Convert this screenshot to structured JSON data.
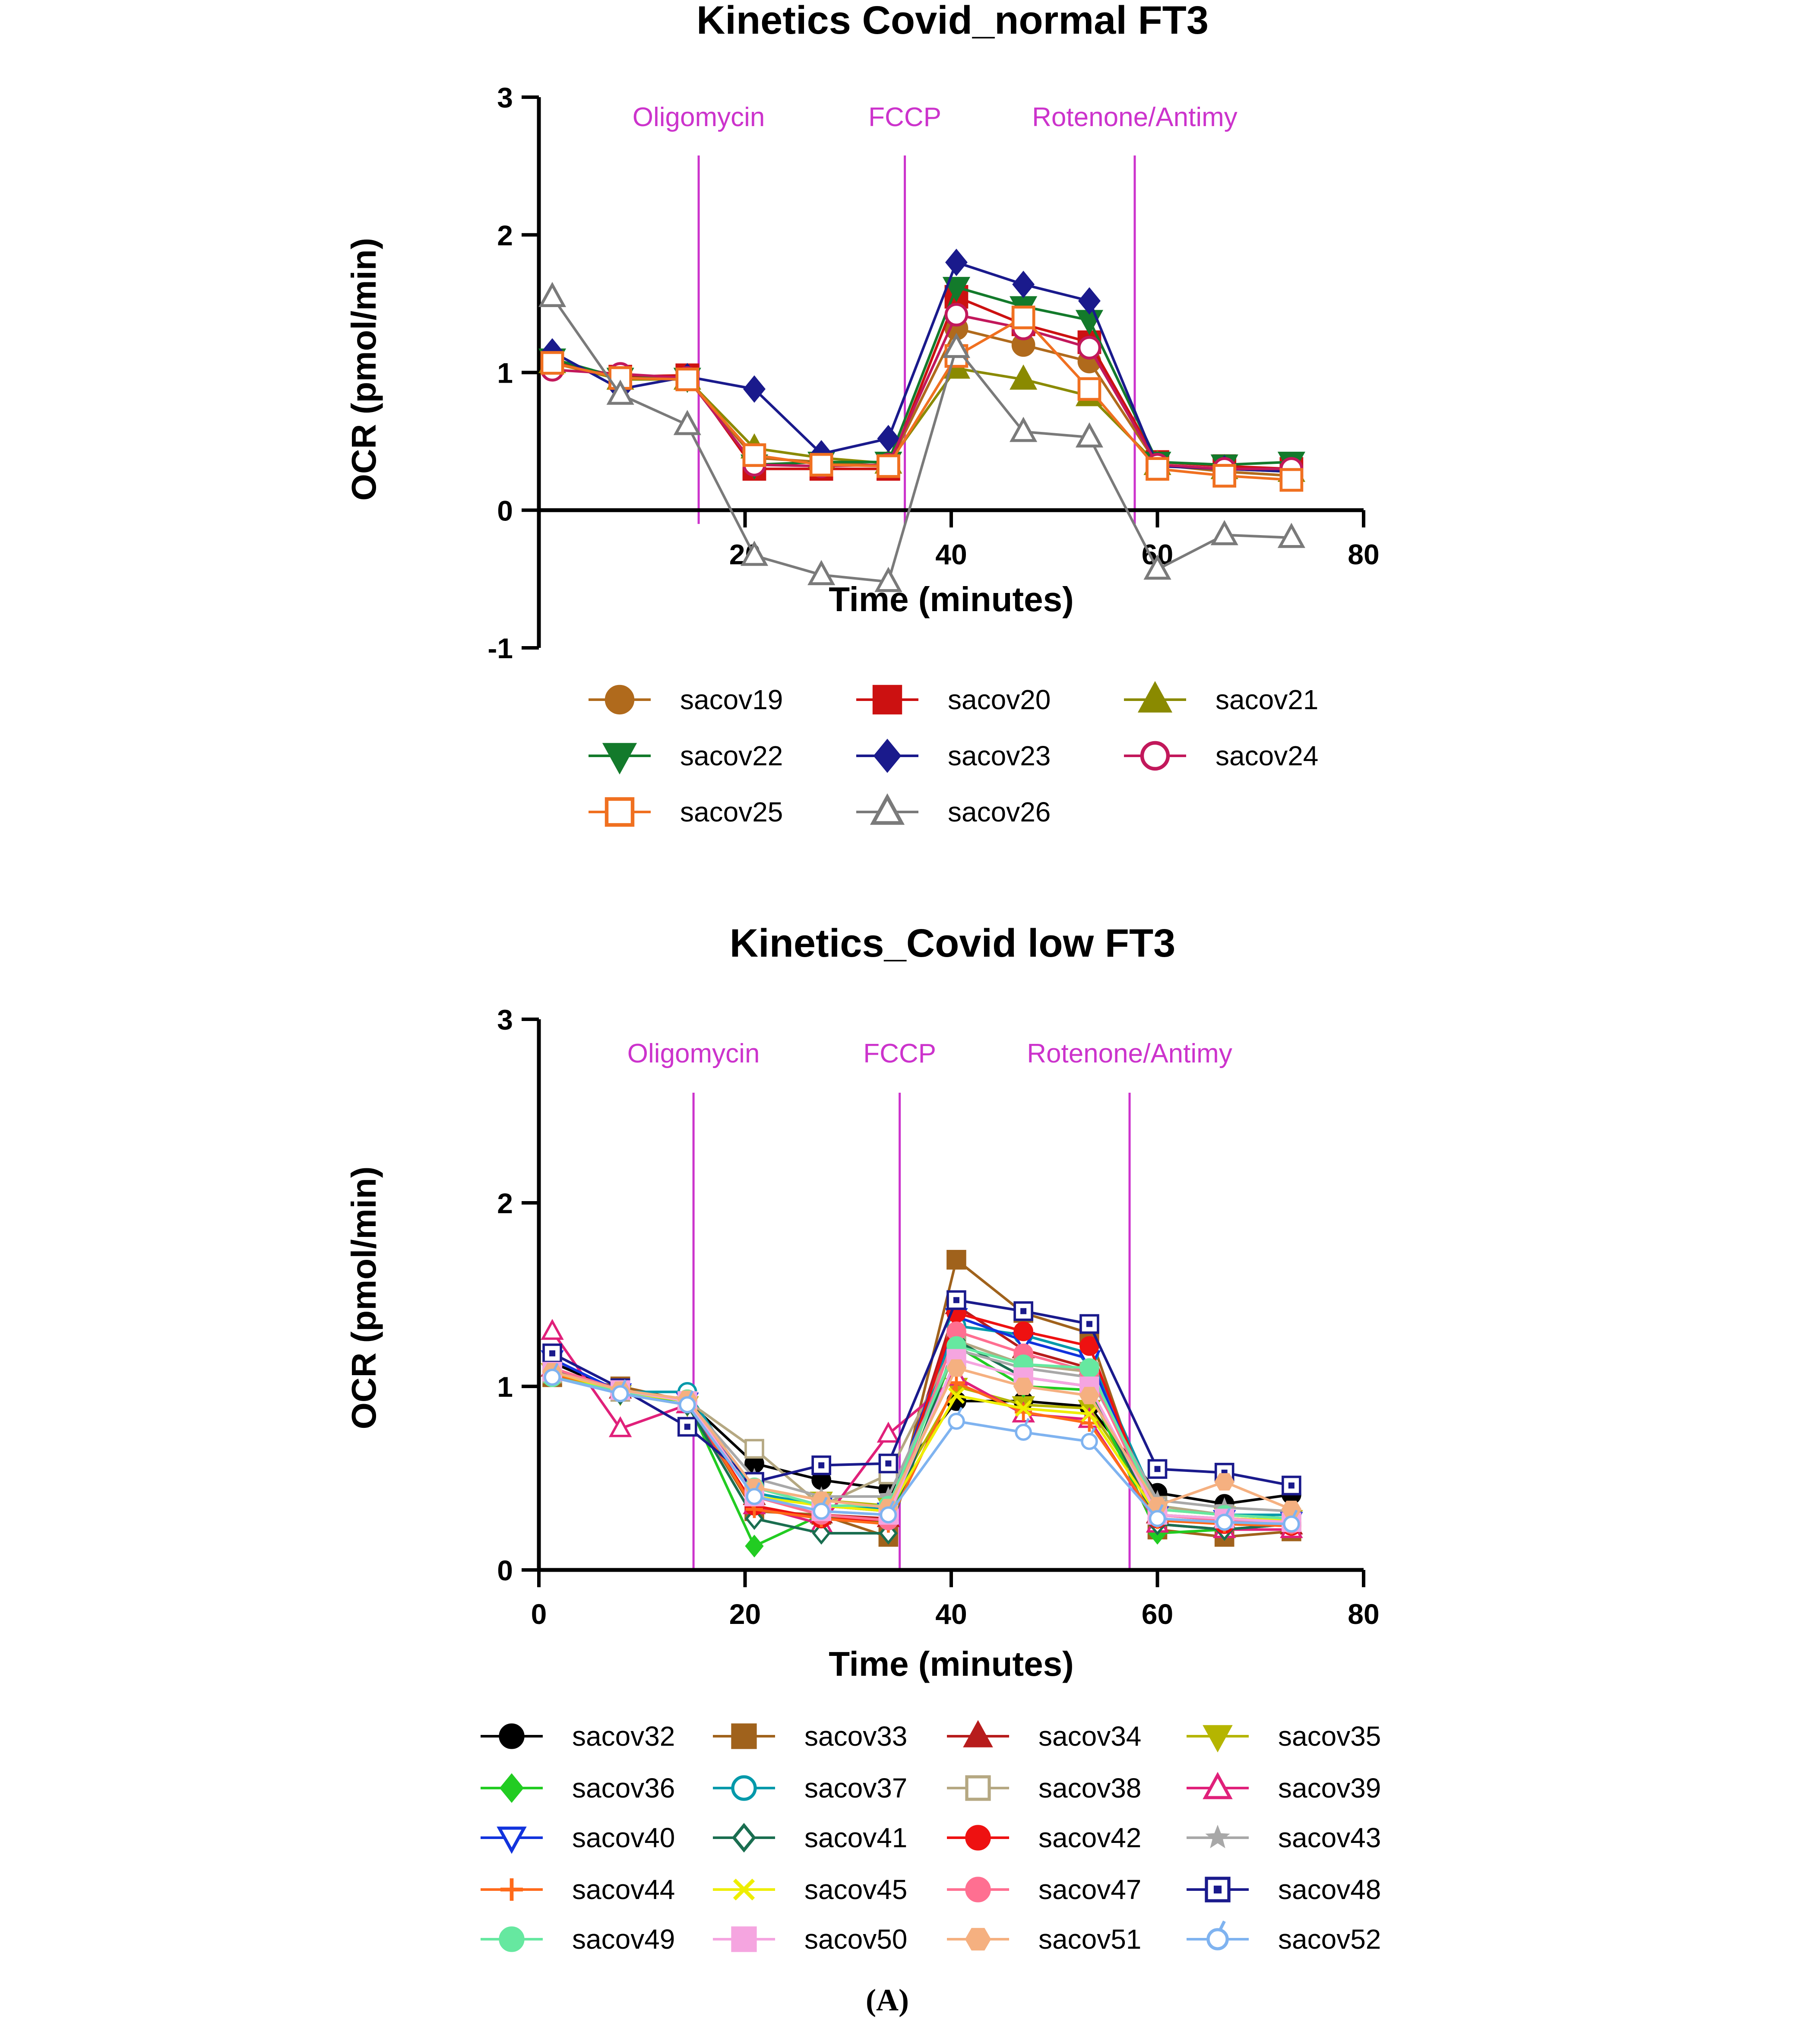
{
  "figure_caption": "(A)",
  "chart_data": [
    {
      "type": "line",
      "title": "Kinetics Covid_normal FT3",
      "xlabel": "Time (minutes)",
      "ylabel": "OCR (pmol/min)",
      "xlim": [
        0,
        80
      ],
      "ylim": [
        -1,
        3
      ],
      "xticks": [
        "20",
        "40",
        "60",
        "80"
      ],
      "yticks": [
        "-1",
        "0",
        "1",
        "2",
        "3"
      ],
      "injections": [
        {
          "label": "Oligomycin",
          "x": 15.5
        },
        {
          "label": "FCCP",
          "x": 35.5
        },
        {
          "label": "Rotenone/Antimy",
          "x": 57.8
        }
      ],
      "x": [
        1.3,
        7.9,
        14.4,
        20.9,
        27.4,
        33.9,
        40.5,
        47.0,
        53.4,
        60.0,
        66.5,
        73.0
      ],
      "series": [
        {
          "name": "sacov19",
          "color": "#b06a1c",
          "marker": "circle",
          "filled": true,
          "values": [
            1.1,
            0.95,
            0.95,
            0.38,
            0.35,
            0.32,
            1.32,
            1.2,
            1.08,
            0.33,
            0.28,
            0.25
          ]
        },
        {
          "name": "sacov20",
          "color": "#cc1111",
          "marker": "square",
          "filled": true,
          "values": [
            1.08,
            0.97,
            0.98,
            0.3,
            0.3,
            0.3,
            1.55,
            1.35,
            1.22,
            0.35,
            0.32,
            0.3
          ]
        },
        {
          "name": "sacov21",
          "color": "#8a8a00",
          "marker": "triangle-up",
          "filled": true,
          "values": [
            1.07,
            0.95,
            0.95,
            0.45,
            0.38,
            0.34,
            1.03,
            0.95,
            0.83,
            0.33,
            0.3,
            0.28
          ]
        },
        {
          "name": "sacov22",
          "color": "#137a2b",
          "marker": "triangle-down",
          "filled": true,
          "values": [
            1.1,
            0.96,
            0.96,
            0.33,
            0.35,
            0.35,
            1.62,
            1.48,
            1.38,
            0.35,
            0.33,
            0.35
          ]
        },
        {
          "name": "sacov23",
          "color": "#1a1a8c",
          "marker": "diamond",
          "filled": true,
          "values": [
            1.15,
            0.88,
            0.97,
            0.88,
            0.41,
            0.52,
            1.8,
            1.64,
            1.52,
            0.32,
            0.3,
            0.28
          ]
        },
        {
          "name": "sacov24",
          "color": "#c2185b",
          "marker": "circle",
          "filled": false,
          "values": [
            1.02,
            0.99,
            0.96,
            0.33,
            0.32,
            0.33,
            1.42,
            1.32,
            1.18,
            0.33,
            0.3,
            0.3
          ]
        },
        {
          "name": "sacov25",
          "color": "#f07020",
          "marker": "square",
          "filled": false,
          "values": [
            1.07,
            0.96,
            0.95,
            0.4,
            0.33,
            0.32,
            1.12,
            1.4,
            0.88,
            0.3,
            0.25,
            0.22
          ]
        },
        {
          "name": "sacov26",
          "color": "#7a7a7a",
          "marker": "triangle-up",
          "filled": false,
          "values": [
            1.55,
            0.84,
            0.62,
            -0.33,
            -0.47,
            -0.52,
            1.18,
            0.57,
            0.53,
            -0.43,
            -0.18,
            -0.2
          ]
        }
      ]
    },
    {
      "type": "line",
      "title": "Kinetics_Covid low FT3",
      "xlabel": "Time (minutes)",
      "ylabel": "OCR (pmol/min)",
      "xlim": [
        0,
        80
      ],
      "ylim": [
        0,
        3
      ],
      "xticks": [
        "0",
        "20",
        "40",
        "60",
        "80"
      ],
      "yticks": [
        "0",
        "1",
        "2",
        "3"
      ],
      "injections": [
        {
          "label": "Oligomycin",
          "x": 15.0
        },
        {
          "label": "FCCP",
          "x": 35.0
        },
        {
          "label": "Rotenone/Antimy",
          "x": 57.3
        }
      ],
      "x": [
        1.3,
        7.9,
        14.4,
        20.9,
        27.4,
        33.9,
        40.5,
        47.0,
        53.4,
        60.0,
        66.5,
        73.0
      ],
      "series": [
        {
          "name": "sacov32",
          "color": "#000000",
          "marker": "circle",
          "filled": true,
          "values": [
            1.13,
            0.97,
            0.92,
            0.58,
            0.49,
            0.44,
            0.92,
            0.92,
            0.89,
            0.42,
            0.36,
            0.41
          ]
        },
        {
          "name": "sacov33",
          "color": "#a0621c",
          "marker": "square",
          "filled": true,
          "values": [
            1.05,
            1.0,
            0.92,
            0.32,
            0.3,
            0.18,
            1.69,
            1.4,
            1.29,
            0.22,
            0.18,
            0.21
          ]
        },
        {
          "name": "sacov34",
          "color": "#b71c1c",
          "marker": "triangle-up",
          "filled": true,
          "values": [
            1.1,
            0.98,
            0.92,
            0.4,
            0.3,
            0.28,
            1.44,
            1.2,
            1.1,
            0.3,
            0.27,
            0.24
          ]
        },
        {
          "name": "sacov35",
          "color": "#b5b500",
          "marker": "triangle-down",
          "filled": true,
          "values": [
            1.08,
            0.96,
            0.9,
            0.45,
            0.38,
            0.35,
            1.0,
            0.9,
            0.88,
            0.33,
            0.3,
            0.28
          ]
        },
        {
          "name": "sacov36",
          "color": "#22cc22",
          "marker": "diamond",
          "filled": true,
          "values": [
            1.1,
            0.96,
            0.92,
            0.13,
            0.3,
            0.25,
            1.22,
            1.0,
            0.98,
            0.2,
            0.22,
            0.25
          ]
        },
        {
          "name": "sacov37",
          "color": "#0099aa",
          "marker": "circle",
          "filled": false,
          "values": [
            1.05,
            0.97,
            0.97,
            0.42,
            0.35,
            0.33,
            1.33,
            1.28,
            1.18,
            0.35,
            0.3,
            0.3
          ]
        },
        {
          "name": "sacov38",
          "color": "#b5a882",
          "marker": "square",
          "filled": false,
          "values": [
            1.07,
            0.97,
            0.92,
            0.66,
            0.35,
            0.52,
            1.25,
            1.12,
            1.08,
            0.35,
            0.3,
            0.28
          ]
        },
        {
          "name": "sacov39",
          "color": "#e0207a",
          "marker": "triangle-up",
          "filled": false,
          "values": [
            1.3,
            0.77,
            0.9,
            0.35,
            0.25,
            0.74,
            1.05,
            0.85,
            0.82,
            0.25,
            0.22,
            0.22
          ]
        },
        {
          "name": "sacov40",
          "color": "#1133dd",
          "marker": "triangle-down",
          "filled": false,
          "values": [
            1.15,
            0.97,
            0.92,
            0.45,
            0.35,
            0.32,
            1.38,
            1.25,
            1.15,
            0.3,
            0.28,
            0.27
          ]
        },
        {
          "name": "sacov41",
          "color": "#1a6e50",
          "marker": "diamond",
          "filled": false,
          "values": [
            1.1,
            0.96,
            0.9,
            0.28,
            0.2,
            0.2,
            1.25,
            1.05,
            1.0,
            0.25,
            0.22,
            0.25
          ]
        },
        {
          "name": "sacov42",
          "color": "#ee1111",
          "marker": "circle",
          "filled": true,
          "values": [
            1.08,
            0.98,
            0.92,
            0.35,
            0.28,
            0.27,
            1.4,
            1.3,
            1.22,
            0.28,
            0.25,
            0.24
          ]
        },
        {
          "name": "sacov43",
          "color": "#a8a8a8",
          "marker": "star",
          "filled": true,
          "values": [
            1.08,
            0.97,
            0.92,
            0.5,
            0.4,
            0.4,
            1.2,
            1.1,
            1.05,
            0.38,
            0.34,
            0.32
          ]
        },
        {
          "name": "sacov44",
          "color": "#ff6a1a",
          "marker": "plus",
          "filled": true,
          "values": [
            1.07,
            0.97,
            0.93,
            0.33,
            0.28,
            0.25,
            1.02,
            0.86,
            0.8,
            0.27,
            0.25,
            0.24
          ]
        },
        {
          "name": "sacov45",
          "color": "#eeee00",
          "marker": "cross",
          "filled": true,
          "values": [
            1.08,
            0.97,
            0.92,
            0.4,
            0.35,
            0.32,
            0.95,
            0.88,
            0.85,
            0.3,
            0.28,
            0.27
          ]
        },
        {
          "name": "sacov47",
          "color": "#ff6f91",
          "marker": "circle",
          "filled": true,
          "values": [
            1.1,
            0.98,
            0.93,
            0.4,
            0.3,
            0.27,
            1.3,
            1.18,
            1.08,
            0.3,
            0.27,
            0.25
          ]
        },
        {
          "name": "sacov48",
          "color": "#1a1a8c",
          "marker": "square-dot",
          "filled": false,
          "values": [
            1.18,
            0.99,
            0.78,
            0.48,
            0.57,
            0.58,
            1.47,
            1.41,
            1.34,
            0.55,
            0.53,
            0.46
          ]
        },
        {
          "name": "sacov49",
          "color": "#66e8a0",
          "marker": "circle",
          "filled": true,
          "values": [
            1.05,
            0.97,
            0.93,
            0.45,
            0.35,
            0.35,
            1.22,
            1.12,
            1.1,
            0.33,
            0.3,
            0.28
          ]
        },
        {
          "name": "sacov50",
          "color": "#f5a5e0",
          "marker": "square",
          "filled": true,
          "values": [
            1.08,
            0.98,
            0.92,
            0.4,
            0.32,
            0.3,
            1.15,
            1.05,
            1.0,
            0.3,
            0.28,
            0.26
          ]
        },
        {
          "name": "sacov51",
          "color": "#f5b080",
          "marker": "hexagon",
          "filled": true,
          "values": [
            1.08,
            0.98,
            0.93,
            0.45,
            0.38,
            0.34,
            1.1,
            1.0,
            0.95,
            0.35,
            0.48,
            0.33
          ]
        },
        {
          "name": "sacov52",
          "color": "#7fb3f0",
          "marker": "circle-tick",
          "filled": false,
          "values": [
            1.05,
            0.96,
            0.9,
            0.4,
            0.32,
            0.3,
            0.81,
            0.75,
            0.7,
            0.28,
            0.26,
            0.25
          ]
        }
      ]
    }
  ]
}
